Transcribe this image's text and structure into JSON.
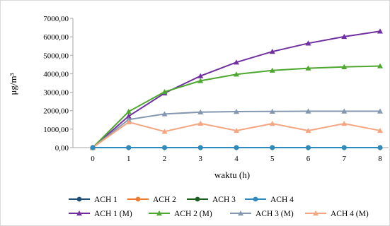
{
  "chart_data": {
    "type": "line",
    "xlabel": "waktu (h)",
    "ylabel": "μg/m³",
    "xlim": [
      0,
      8
    ],
    "ylim": [
      0,
      7000
    ],
    "x": [
      0,
      1,
      2,
      3,
      4,
      5,
      6,
      7,
      8
    ],
    "x_tick_labels": [
      "0",
      "1",
      "2",
      "3",
      "4",
      "5",
      "6",
      "7",
      "8"
    ],
    "y_ticks": [
      0,
      1000,
      2000,
      3000,
      4000,
      5000,
      6000,
      7000
    ],
    "y_tick_labels": [
      "0,00",
      "1000,00",
      "2000,00",
      "3000,00",
      "4000,00",
      "5000,00",
      "6000,00",
      "7000,00"
    ],
    "grid": false,
    "legend_position": "bottom",
    "series": [
      {
        "name": "ACH 1",
        "marker": "circle",
        "color": "#1f4e79",
        "values": [
          0,
          0,
          0,
          0,
          0,
          0,
          0,
          0,
          0
        ]
      },
      {
        "name": "ACH 2",
        "marker": "circle",
        "color": "#ed7d31",
        "values": [
          0,
          0,
          0,
          0,
          0,
          0,
          0,
          0,
          0
        ]
      },
      {
        "name": "ACH 3",
        "marker": "circle",
        "color": "#1e5e20",
        "values": [
          0,
          0,
          0,
          0,
          0,
          0,
          0,
          0,
          0
        ]
      },
      {
        "name": "ACH 4",
        "marker": "circle",
        "color": "#2e8bc0",
        "values": [
          0,
          0,
          0,
          0,
          0,
          0,
          0,
          0,
          0
        ]
      },
      {
        "name": "ACH 1 (M)",
        "marker": "triangle",
        "color": "#7030a0",
        "values": [
          0,
          1700,
          2950,
          3880,
          4620,
          5200,
          5650,
          6010,
          6300
        ]
      },
      {
        "name": "ACH 2 (M)",
        "marker": "triangle",
        "color": "#4ea72e",
        "values": [
          0,
          1950,
          3020,
          3620,
          3970,
          4180,
          4300,
          4370,
          4420
        ]
      },
      {
        "name": "ACH 3 (M)",
        "marker": "triangle",
        "color": "#8497b0",
        "values": [
          0,
          1520,
          1820,
          1920,
          1950,
          1960,
          1970,
          1970,
          1970
        ]
      },
      {
        "name": "ACH 4 (M)",
        "marker": "triangle",
        "color": "#f4a582",
        "values": [
          0,
          1380,
          870,
          1310,
          920,
          1300,
          920,
          1300,
          920
        ]
      }
    ]
  }
}
